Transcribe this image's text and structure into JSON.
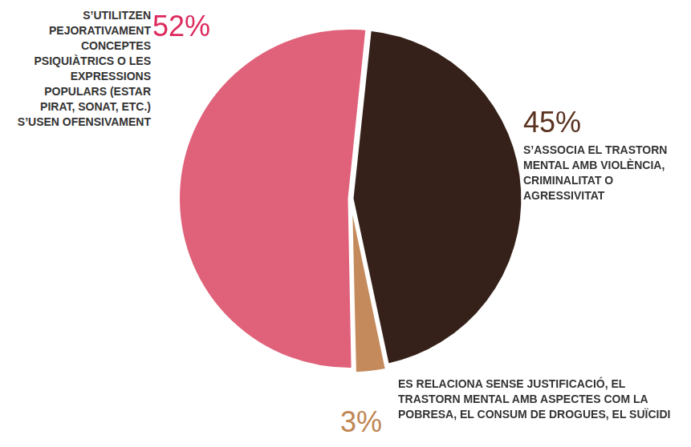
{
  "chart_data": {
    "type": "pie",
    "categories": [
      "S’ASSOCIA EL TRASTORN MENTAL AMB VIOLÈNCIA, CRIMINALITAT O AGRESSIVITAT",
      "ES RELACIONA SENSE JUSTIFICACIÓ, EL TRASTORN MENTAL AMB ASPECTES COM LA POBRESA, EL CONSUM DE DROGUES, EL SUÏCIDI",
      "S’UTILITZEN PEJORATIVAMENT CONCEPTES PSIQUIÀTRICS O LES EXPRESSIONS POPULARS (ESTAR PIRAT, SONAT, ETC.) S’USEN OFENSIVAMENT"
    ],
    "values": [
      45,
      3,
      52
    ],
    "value_labels": [
      "45%",
      "3%",
      "52%"
    ],
    "colors": [
      "#352119",
      "#c48a5b",
      "#e0627a"
    ],
    "data_labels": true
  }
}
